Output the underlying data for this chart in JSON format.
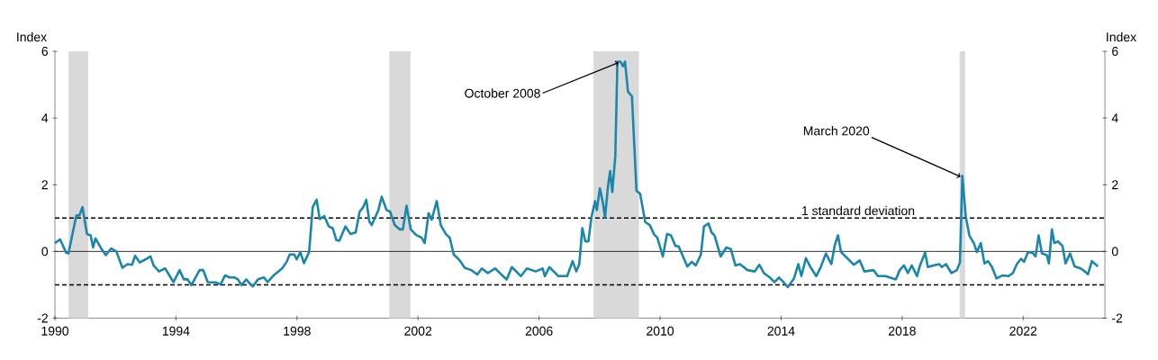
{
  "chart_data": {
    "type": "line",
    "ylabel": "Index",
    "y2label": "Index",
    "xlim": [
      1990,
      2024.7
    ],
    "xticks": [
      1990,
      1994,
      1998,
      2002,
      2006,
      2010,
      2014,
      2018,
      2022
    ],
    "ylim": [
      -2,
      6
    ],
    "yticks": [
      -2,
      0,
      2,
      4,
      6
    ],
    "y2lim": [
      -2,
      6
    ],
    "y2ticks": [
      -2,
      0,
      2,
      4,
      6
    ],
    "series": [
      {
        "color": "#1a86ab",
        "x": [
          1990.0,
          1990.17,
          1990.37,
          1990.45,
          1990.57,
          1990.71,
          1990.81,
          1990.91,
          1991.06,
          1991.18,
          1991.26,
          1991.34,
          1991.51,
          1991.68,
          1991.86,
          1992.03,
          1992.23,
          1992.4,
          1992.55,
          1992.65,
          1992.8,
          1992.99,
          1993.16,
          1993.26,
          1993.44,
          1993.64,
          1993.92,
          1994.12,
          1994.26,
          1994.38,
          1994.51,
          1994.78,
          1994.9,
          1995.05,
          1995.33,
          1995.48,
          1995.62,
          1995.77,
          1995.92,
          1996.04,
          1996.17,
          1996.32,
          1996.54,
          1996.72,
          1996.91,
          1997.03,
          1997.26,
          1997.39,
          1997.51,
          1997.66,
          1997.76,
          1997.91,
          1997.99,
          1998.11,
          1998.23,
          1998.4,
          1998.52,
          1998.65,
          1998.75,
          1998.9,
          1999.05,
          1999.18,
          1999.3,
          1999.4,
          1999.6,
          1999.77,
          1999.94,
          2000.07,
          2000.19,
          2000.29,
          2000.39,
          2000.47,
          2000.69,
          2000.8,
          2000.96,
          2001.08,
          2001.23,
          2001.4,
          2001.5,
          2001.62,
          2001.76,
          2001.93,
          2002.12,
          2002.22,
          2002.35,
          2002.45,
          2002.62,
          2002.75,
          2002.92,
          2003.05,
          2003.18,
          2003.38,
          2003.54,
          2003.76,
          2003.96,
          2004.11,
          2004.31,
          2004.55,
          2004.75,
          2004.93,
          2005.1,
          2005.4,
          2005.6,
          2005.89,
          2006.12,
          2006.19,
          2006.34,
          2006.64,
          2006.93,
          2007.11,
          2007.23,
          2007.33,
          2007.43,
          2007.53,
          2007.63,
          2007.73,
          2007.85,
          2007.91,
          2008.01,
          2008.11,
          2008.18,
          2008.28,
          2008.35,
          2008.42,
          2008.52,
          2008.59,
          2008.69,
          2008.77,
          2008.84,
          2008.94,
          2009.07,
          2009.22,
          2009.34,
          2009.51,
          2009.66,
          2009.81,
          2009.91,
          2010.09,
          2010.23,
          2010.36,
          2010.51,
          2010.61,
          2010.9,
          2011.05,
          2011.18,
          2011.35,
          2011.45,
          2011.6,
          2011.7,
          2011.8,
          2012.0,
          2012.19,
          2012.34,
          2012.49,
          2012.64,
          2012.89,
          2013.13,
          2013.28,
          2013.43,
          2013.63,
          2013.78,
          2013.93,
          2014.08,
          2014.22,
          2014.42,
          2014.57,
          2014.67,
          2014.82,
          2014.97,
          2015.16,
          2015.31,
          2015.48,
          2015.66,
          2015.78,
          2015.88,
          2015.98,
          2016.16,
          2016.4,
          2016.6,
          2016.75,
          2017.05,
          2017.2,
          2017.45,
          2017.79,
          2017.92,
          2018.06,
          2018.19,
          2018.32,
          2018.49,
          2018.59,
          2018.76,
          2018.85,
          2019.03,
          2019.23,
          2019.31,
          2019.45,
          2019.63,
          2019.81,
          2019.91,
          2019.99,
          2020.1,
          2020.22,
          2020.37,
          2020.47,
          2020.6,
          2020.72,
          2020.84,
          2020.97,
          2021.12,
          2021.31,
          2021.51,
          2021.66,
          2021.79,
          2021.93,
          2022.03,
          2022.16,
          2022.31,
          2022.41,
          2022.51,
          2022.62,
          2022.78,
          2022.85,
          2022.95,
          2023.03,
          2023.15,
          2023.3,
          2023.4,
          2023.55,
          2023.7,
          2023.9,
          2024.04,
          2024.14,
          2024.27,
          2024.47
        ],
        "values": [
          0.25,
          0.36,
          -0.04,
          -0.06,
          0.48,
          1.08,
          1.08,
          1.33,
          0.52,
          0.48,
          0.12,
          0.39,
          0.12,
          -0.11,
          0.09,
          0.0,
          -0.49,
          -0.38,
          -0.4,
          -0.13,
          -0.33,
          -0.24,
          -0.15,
          -0.42,
          -0.6,
          -0.51,
          -0.92,
          -0.56,
          -0.84,
          -0.83,
          -1.01,
          -0.56,
          -0.56,
          -0.92,
          -0.93,
          -0.99,
          -0.72,
          -0.78,
          -0.78,
          -0.83,
          -1.01,
          -0.84,
          -1.05,
          -0.83,
          -0.78,
          -0.92,
          -0.69,
          -0.6,
          -0.51,
          -0.31,
          -0.09,
          -0.09,
          -0.24,
          -0.02,
          -0.35,
          -0.02,
          1.33,
          1.55,
          0.97,
          1.06,
          0.75,
          0.7,
          0.34,
          0.32,
          0.75,
          0.52,
          0.57,
          1.19,
          1.33,
          1.55,
          0.9,
          0.79,
          1.24,
          1.64,
          1.24,
          1.19,
          0.79,
          0.66,
          0.66,
          1.37,
          0.66,
          0.5,
          0.41,
          0.25,
          1.15,
          0.95,
          1.51,
          0.79,
          0.52,
          0.41,
          -0.09,
          -0.27,
          -0.49,
          -0.56,
          -0.69,
          -0.51,
          -0.65,
          -0.51,
          -0.69,
          -0.84,
          -0.47,
          -0.74,
          -0.51,
          -0.6,
          -0.51,
          -0.74,
          -0.47,
          -0.74,
          -0.74,
          -0.29,
          -0.6,
          -0.38,
          0.7,
          0.3,
          0.3,
          1.02,
          1.51,
          1.24,
          1.89,
          1.46,
          1.02,
          1.96,
          2.41,
          1.78,
          2.86,
          5.69,
          5.69,
          5.55,
          5.69,
          4.79,
          4.65,
          1.82,
          1.73,
          0.88,
          0.79,
          0.5,
          0.41,
          -0.15,
          0.52,
          0.48,
          0.16,
          0.16,
          -0.45,
          -0.31,
          -0.42,
          -0.09,
          0.75,
          0.84,
          0.57,
          0.48,
          -0.15,
          0.12,
          0.07,
          -0.42,
          -0.38,
          -0.56,
          -0.6,
          -0.4,
          -0.65,
          -0.78,
          -0.92,
          -0.78,
          -0.92,
          -1.07,
          -0.82,
          -0.38,
          -0.74,
          -0.2,
          -0.47,
          -0.74,
          -0.47,
          -0.06,
          -0.38,
          0.21,
          0.48,
          -0.02,
          -0.18,
          -0.4,
          -0.27,
          -0.6,
          -0.56,
          -0.74,
          -0.74,
          -0.84,
          -0.56,
          -0.42,
          -0.65,
          -0.42,
          -0.74,
          -0.42,
          -0.04,
          -0.47,
          -0.42,
          -0.38,
          -0.47,
          -0.38,
          -0.65,
          -0.56,
          -0.33,
          2.27,
          1.06,
          0.48,
          0.25,
          -0.02,
          0.25,
          -0.36,
          -0.29,
          -0.47,
          -0.81,
          -0.72,
          -0.74,
          -0.65,
          -0.38,
          -0.22,
          -0.31,
          -0.02,
          -0.04,
          -0.15,
          0.48,
          -0.06,
          -0.11,
          -0.36,
          0.66,
          0.25,
          0.3,
          0.16,
          -0.36,
          -0.06,
          -0.45,
          -0.51,
          -0.6,
          -0.69,
          -0.29,
          -0.45
        ]
      }
    ],
    "ref_lines": [
      {
        "axis": "y",
        "value": 1,
        "label": "1 standard deviation",
        "line_style": "dashed",
        "color": "#000000"
      },
      {
        "axis": "y",
        "value": -1,
        "line_style": "dashed",
        "color": "#000000"
      },
      {
        "axis": "y",
        "value": 0,
        "line_style": "solid",
        "color": "#000000"
      }
    ],
    "bands": [
      {
        "axis": "x",
        "from": 1990.45,
        "to": 1991.1,
        "color": "#d9d9d9"
      },
      {
        "axis": "x",
        "from": 2001.05,
        "to": 2001.75,
        "color": "#d9d9d9"
      },
      {
        "axis": "x",
        "from": 2007.8,
        "to": 2009.3,
        "color": "#d9d9d9"
      },
      {
        "axis": "x",
        "from": 2019.9,
        "to": 2020.08,
        "color": "#d9d9d9"
      }
    ],
    "annotations": [
      {
        "text": "October 2008",
        "x": 2008.69,
        "y": 5.69
      },
      {
        "text": "March 2020",
        "x": 2019.99,
        "y": 2.27
      }
    ]
  }
}
